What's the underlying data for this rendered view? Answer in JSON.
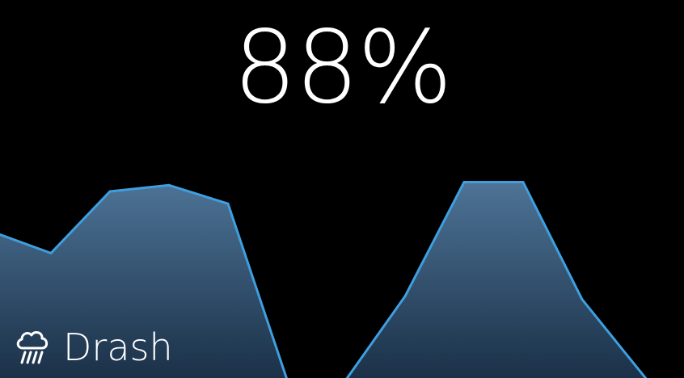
{
  "display": {
    "value": "88%"
  },
  "brand": {
    "name": "Drash",
    "icon": "rain-cloud-icon"
  },
  "chart_data": {
    "type": "area",
    "x": [
      0,
      1,
      2,
      3,
      4,
      5,
      6,
      7,
      8,
      9,
      10,
      11
    ],
    "values": [
      0.58,
      0.52,
      0.72,
      0.74,
      0.68,
      0.11,
      0.11,
      0.38,
      0.75,
      0.75,
      0.37,
      0.11
    ],
    "ylim": [
      0,
      1
    ],
    "grid": false,
    "colors": {
      "line": "#3e9fe0",
      "fill_top": "#4d7396",
      "fill_bottom": "#1a3047"
    }
  }
}
